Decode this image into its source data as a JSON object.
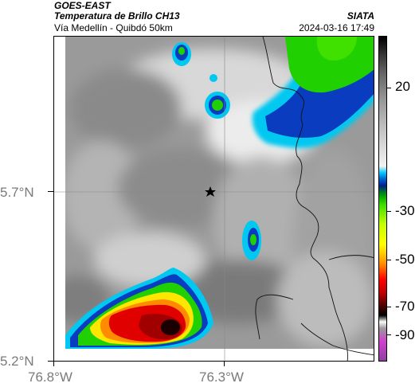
{
  "header": {
    "satellite": "GOES-EAST",
    "product": "Temperatura de Brillo CH13",
    "agency": "SIATA",
    "route": "Vía Medellín - Quibdó 50km",
    "timestamp": "2024-03-16 17:49"
  },
  "axes": {
    "lat_ticks": [
      "5.7°N",
      "5.2°N"
    ],
    "lon_ticks": [
      "76.8°W",
      "76.3°W"
    ]
  },
  "colorbar": {
    "labels": [
      "20",
      "-30",
      "-50",
      "-70",
      "-90"
    ],
    "unit": ""
  },
  "map": {
    "marker": "star-icon",
    "colors": {
      "cold_core": "#1a0000",
      "red": "#e00000",
      "yellow": "#ffe600",
      "green": "#20d000",
      "blue": "#0a3cc0",
      "cyan": "#00c8f0",
      "border": "#000000"
    }
  }
}
